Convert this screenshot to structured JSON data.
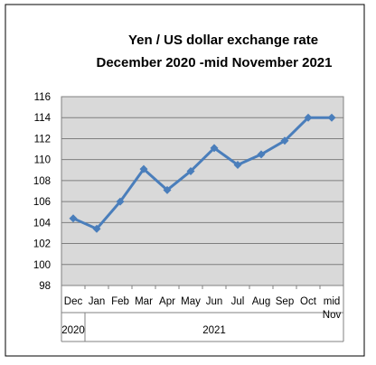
{
  "chart_data": {
    "type": "line",
    "title": "Yen / US dollar exchange rate",
    "subtitle": "December 2020 -mid November 2021",
    "categories": [
      "Dec",
      "Jan",
      "Feb",
      "Mar",
      "Apr",
      "May",
      "Jun",
      "Jul",
      "Aug",
      "Sep",
      "Oct",
      "mid\nNov"
    ],
    "groups": [
      {
        "label": "2020",
        "from": 0,
        "to": 0
      },
      {
        "label": "2021",
        "from": 1,
        "to": 11
      }
    ],
    "series": [
      {
        "values": [
          104.4,
          103.4,
          106.0,
          109.1,
          107.1,
          108.9,
          111.1,
          109.5,
          110.5,
          111.8,
          114.0,
          114.0
        ]
      }
    ],
    "yticks": [
      98,
      100,
      102,
      104,
      106,
      108,
      110,
      112,
      114,
      116
    ],
    "ylim": [
      98,
      116
    ],
    "grid": true,
    "legend": "none",
    "colors": {
      "line": "#4a7ebb",
      "plot_background": "#d9d9d9",
      "gridline": "#7f7f7f"
    }
  }
}
